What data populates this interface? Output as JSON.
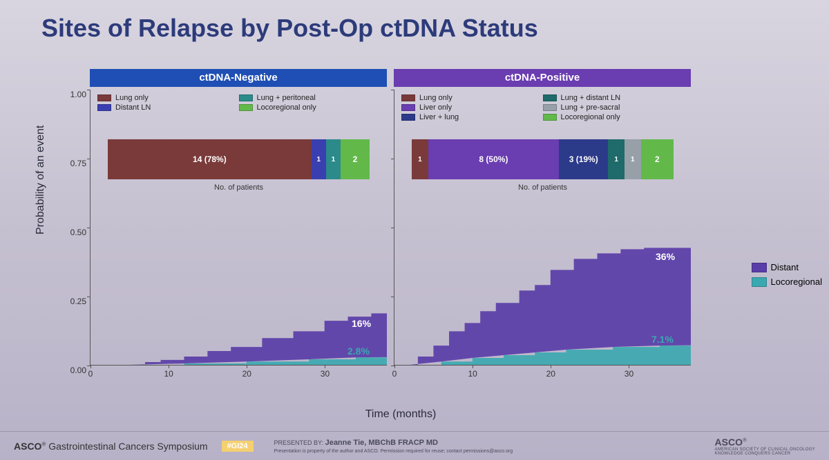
{
  "title": "Sites of Relapse by Post-Op ctDNA Status",
  "axes": {
    "ylabel": "Probability of an event",
    "xlabel": "Time (months)",
    "ylabel_fontsize": 16,
    "xlabel_fontsize": 16,
    "ylim": [
      0,
      1.0
    ],
    "yticks": [
      0.0,
      0.25,
      0.5,
      0.75,
      1.0
    ],
    "ytick_labels": [
      "0.00",
      "0.25",
      "0.50",
      "0.75",
      "1.00"
    ],
    "xlim": [
      0,
      38
    ],
    "xticks": [
      0,
      10,
      20,
      30
    ],
    "xtick_labels": [
      "0",
      "10",
      "20",
      "30"
    ]
  },
  "panels": {
    "left": {
      "header": "ctDNA-Negative",
      "header_bg": "#1f4fb4",
      "legend": [
        {
          "label": "Lung only",
          "color": "#7a3a3a"
        },
        {
          "label": "Lung + peritoneal",
          "color": "#2c8a8a"
        },
        {
          "label": "Distant LN",
          "color": "#3a3fb0"
        },
        {
          "label": "Locoregional only",
          "color": "#62b94a"
        }
      ],
      "stack": {
        "caption": "No. of patients",
        "segments": [
          {
            "label": "14 (78%)",
            "value": 14,
            "color": "#7a3a3a"
          },
          {
            "label": "1",
            "value": 1,
            "color": "#3a3fb0"
          },
          {
            "label": "1",
            "value": 1,
            "color": "#2c8a8a"
          },
          {
            "label": "2",
            "value": 2,
            "color": "#62b94a"
          }
        ]
      },
      "cumInc": {
        "distant_color": "#5a3da8",
        "loco_color": "#3aa8b0",
        "distant_end_pct": "16%",
        "loco_end_pct": "2.8%",
        "distant_points": [
          [
            5,
            0
          ],
          [
            7,
            0.01
          ],
          [
            9,
            0.018
          ],
          [
            12,
            0.03
          ],
          [
            15,
            0.045
          ],
          [
            18,
            0.06
          ],
          [
            22,
            0.085
          ],
          [
            26,
            0.11
          ],
          [
            30,
            0.14
          ],
          [
            33,
            0.155
          ],
          [
            36,
            0.16
          ],
          [
            38,
            0.16
          ]
        ],
        "loco_points": [
          [
            5,
            0
          ],
          [
            12,
            0.005
          ],
          [
            20,
            0.012
          ],
          [
            28,
            0.02
          ],
          [
            34,
            0.027
          ],
          [
            38,
            0.028
          ]
        ]
      }
    },
    "right": {
      "header": "ctDNA-Positive",
      "header_bg": "#6a3db0",
      "legend": [
        {
          "label": "Lung only",
          "color": "#7a3a3a"
        },
        {
          "label": "Lung + distant LN",
          "color": "#1f6a6a"
        },
        {
          "label": "Liver only",
          "color": "#6a3db0"
        },
        {
          "label": "Lung + pre-sacral",
          "color": "#97a0a8"
        },
        {
          "label": "Liver + lung",
          "color": "#2c3a8a"
        },
        {
          "label": "Locoregional only",
          "color": "#62b94a"
        }
      ],
      "stack": {
        "caption": "No. of patients",
        "segments": [
          {
            "label": "1",
            "value": 1,
            "color": "#7a3a3a"
          },
          {
            "label": "8 (50%)",
            "value": 8,
            "color": "#6a3db0"
          },
          {
            "label": "3 (19%)",
            "value": 3,
            "color": "#2c3a8a"
          },
          {
            "label": "1",
            "value": 1,
            "color": "#1f6a6a"
          },
          {
            "label": "1",
            "value": 1,
            "color": "#97a0a8"
          },
          {
            "label": "2",
            "value": 2,
            "color": "#62b94a"
          }
        ]
      },
      "cumInc": {
        "distant_color": "#5a3da8",
        "loco_color": "#3aa8b0",
        "distant_end_pct": "36%",
        "loco_end_pct": "7.1%",
        "distant_points": [
          [
            2,
            0
          ],
          [
            3,
            0.03
          ],
          [
            5,
            0.07
          ],
          [
            7,
            0.11
          ],
          [
            9,
            0.14
          ],
          [
            11,
            0.17
          ],
          [
            13,
            0.2
          ],
          [
            16,
            0.235
          ],
          [
            18,
            0.255
          ],
          [
            20,
            0.3
          ],
          [
            23,
            0.33
          ],
          [
            26,
            0.35
          ],
          [
            29,
            0.355
          ],
          [
            32,
            0.36
          ],
          [
            38,
            0.36
          ]
        ],
        "loco_points": [
          [
            2,
            0
          ],
          [
            6,
            0.012
          ],
          [
            10,
            0.025
          ],
          [
            14,
            0.035
          ],
          [
            18,
            0.045
          ],
          [
            22,
            0.055
          ],
          [
            28,
            0.065
          ],
          [
            34,
            0.07
          ],
          [
            38,
            0.071
          ]
        ]
      }
    }
  },
  "side_legend": [
    {
      "label": "Distant",
      "color": "#5a3da8"
    },
    {
      "label": "Locoregional",
      "color": "#3aa8b0"
    }
  ],
  "footer": {
    "conference": "Gastrointestinal Cancers Symposium",
    "org": "ASCO",
    "hashtag": "#GI24",
    "presented_by_label": "PRESENTED BY:",
    "presenter": "Jeanne Tie, MBChB FRACP MD",
    "disclaimer": "Presentation is property of the author and ASCO. Permission required for reuse; contact permissions@asco.org",
    "right_top": "AMERICAN SOCIETY OF CLINICAL ONCOLOGY",
    "right_bottom": "KNOWLEDGE CONQUERS CANCER"
  },
  "style": {
    "title_color": "#2d3b7a",
    "title_fontsize": 36,
    "bg_gradient": [
      "#d8d5e0",
      "#b8b2c8"
    ],
    "axis_color": "#555555",
    "tick_fontsize": 12
  }
}
